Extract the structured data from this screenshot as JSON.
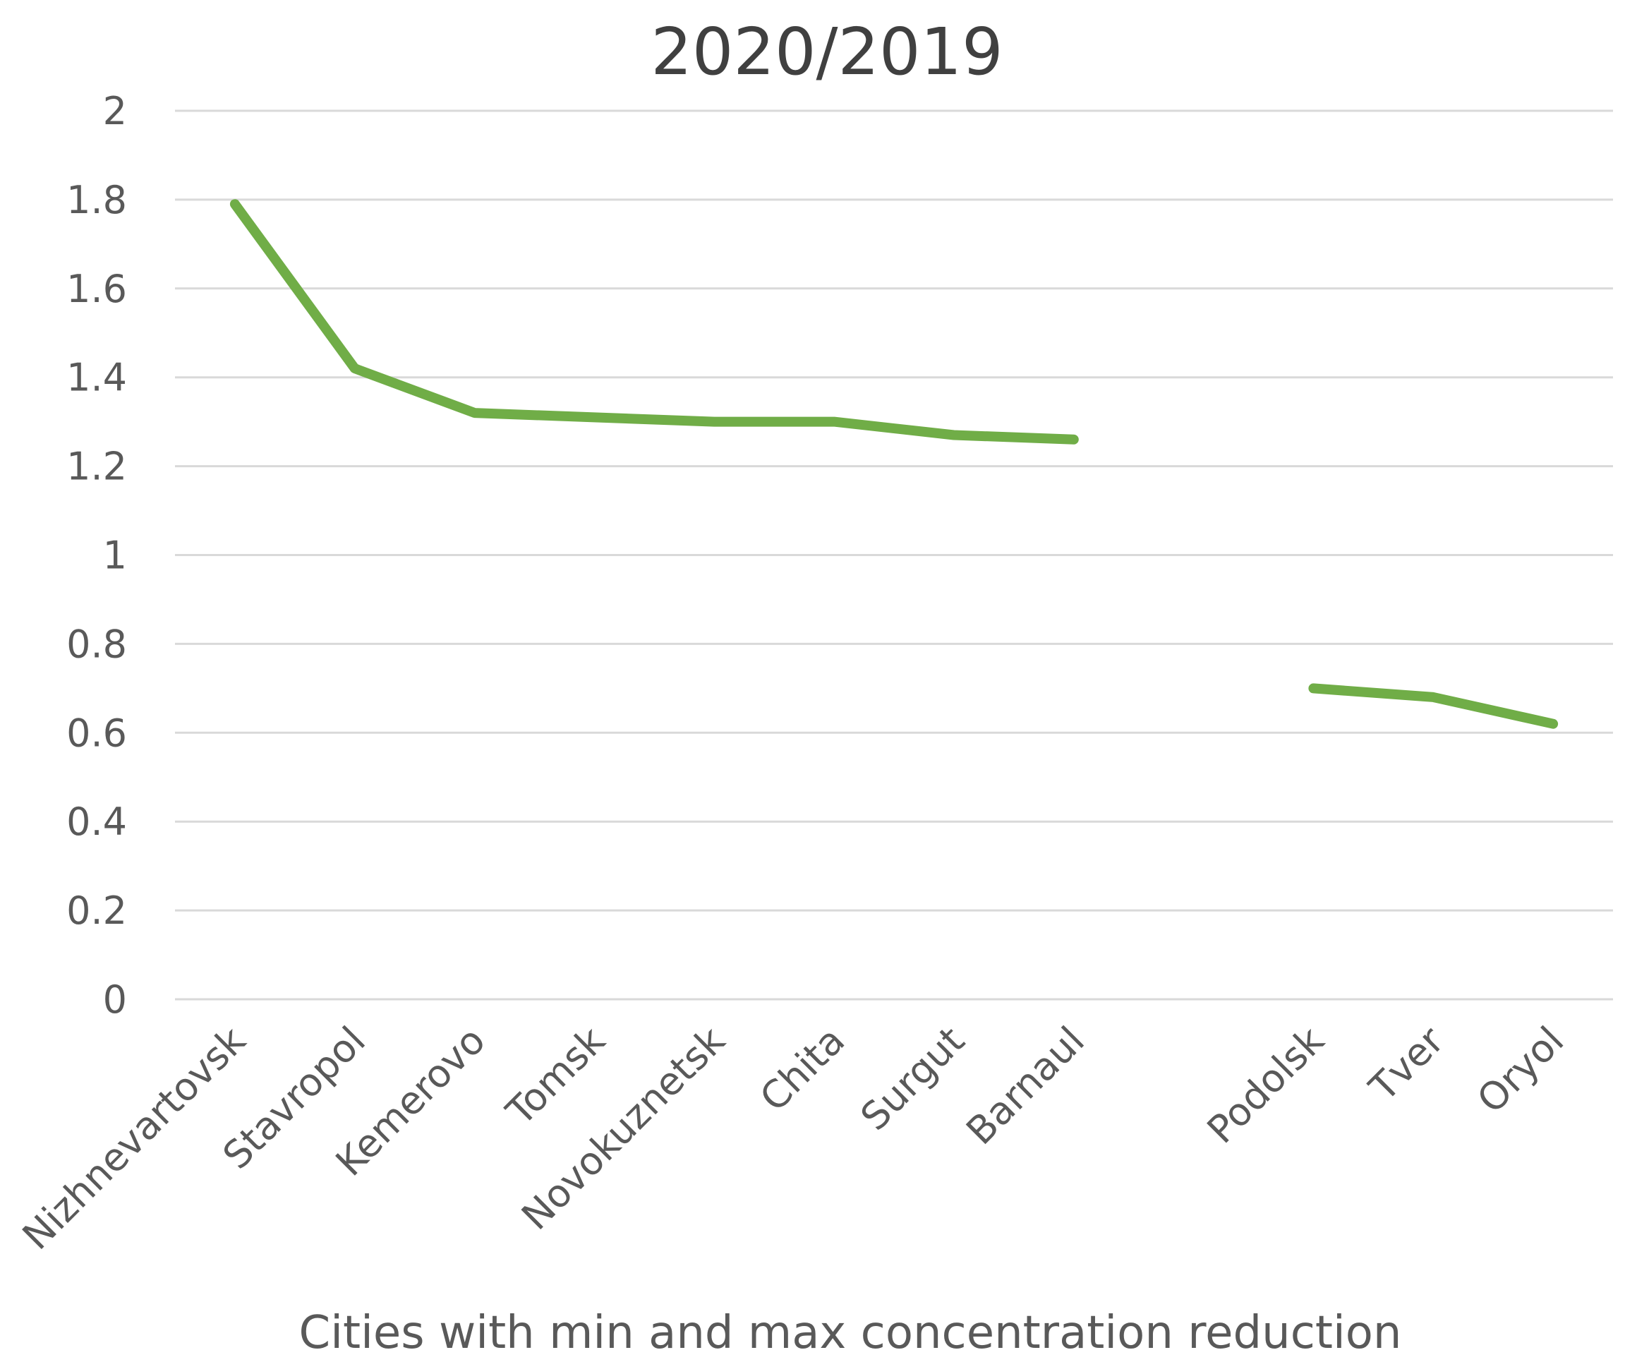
{
  "chart_data": {
    "type": "line",
    "title": "2020/2019",
    "xlabel": "Cities with min and max concentration reduction",
    "ylabel": "",
    "ylim": [
      0,
      2
    ],
    "yticks": [
      0,
      0.2,
      0.4,
      0.6,
      0.8,
      1,
      1.2,
      1.4,
      1.6,
      1.8,
      2
    ],
    "ytick_labels": [
      "0",
      "0.2",
      "0.4",
      "0.6",
      "0.8",
      "1",
      "1.2",
      "1.4",
      "1.6",
      "1.8",
      "2"
    ],
    "grid": true,
    "legend": "none",
    "categories": [
      "Nizhnevartovsk",
      "Stavropol",
      "Kemerovo",
      "Tomsk",
      "Novokuznetsk",
      "Chita",
      "Surgut",
      "Barnaul",
      "",
      "Podolsk",
      "Tver",
      "Oryol"
    ],
    "series": [
      {
        "name": "2020/2019",
        "color": "#70ad47",
        "values": [
          1.79,
          1.42,
          1.32,
          1.31,
          1.3,
          1.3,
          1.27,
          1.26,
          null,
          0.7,
          0.68,
          0.62
        ]
      }
    ]
  }
}
